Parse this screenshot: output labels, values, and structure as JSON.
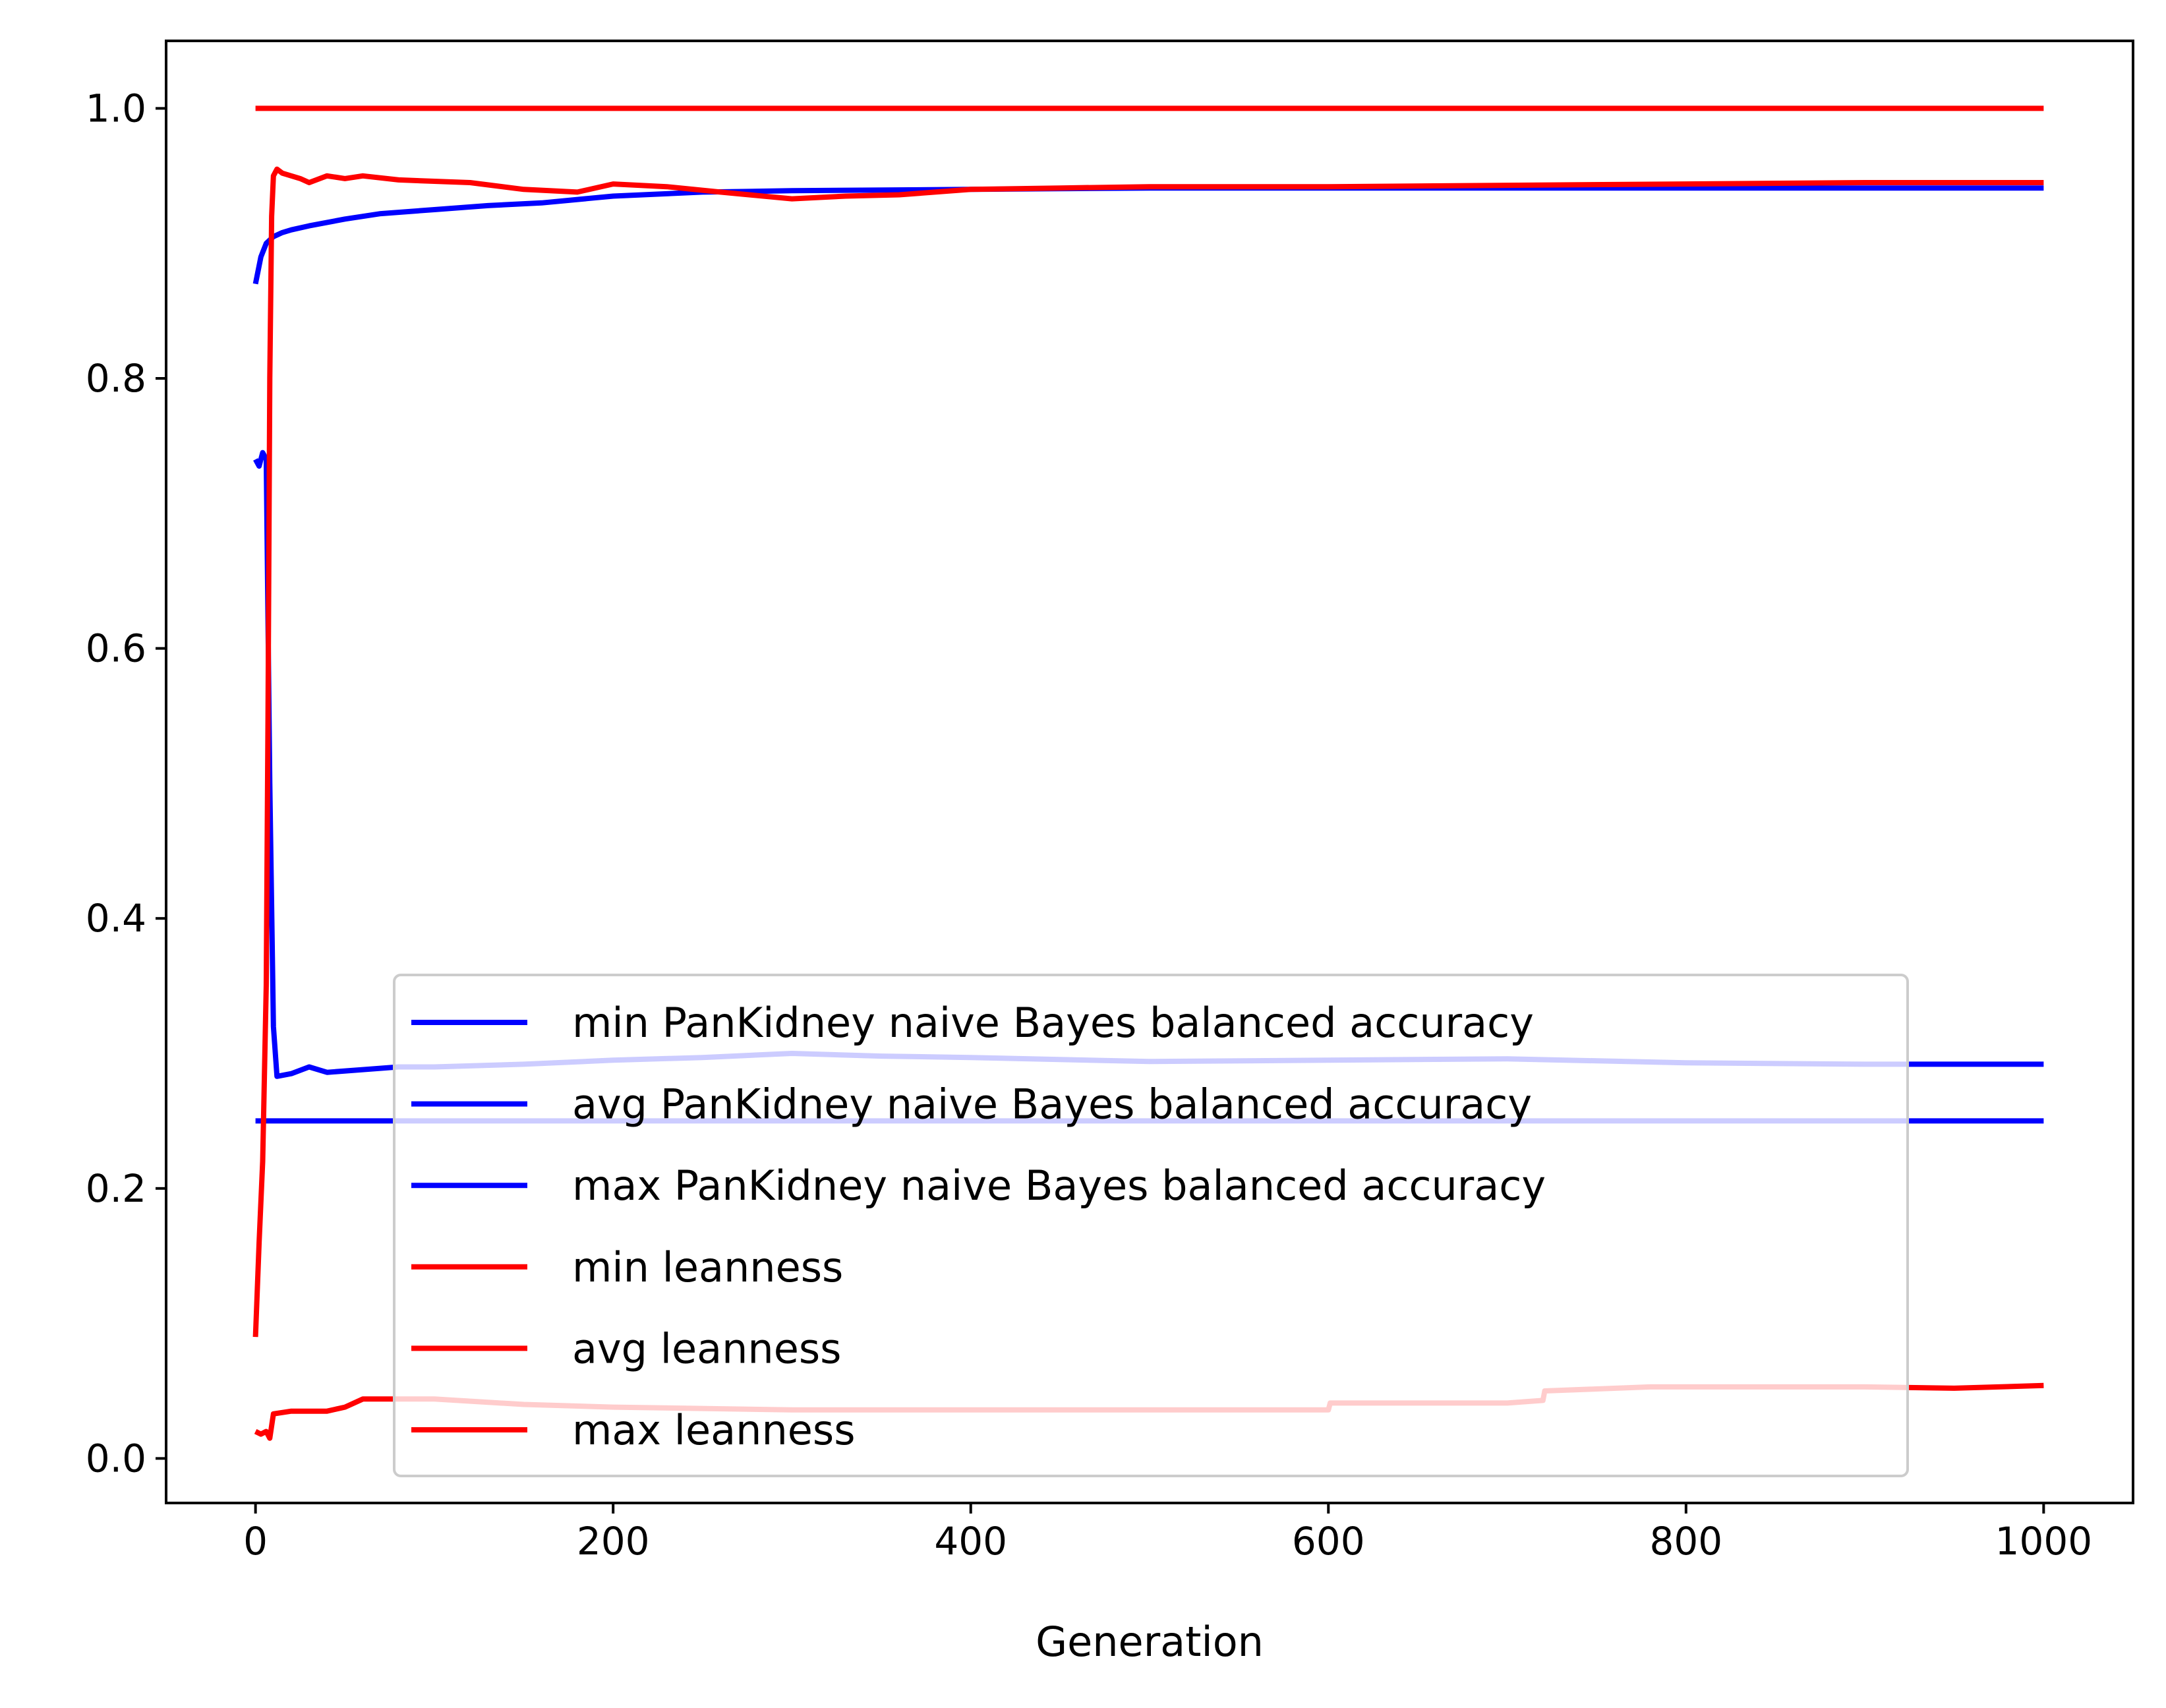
{
  "chart_data": {
    "type": "line",
    "xlabel": "Generation",
    "ylabel": "",
    "xlim": [
      -50,
      1050
    ],
    "ylim": [
      -0.033,
      1.05
    ],
    "xticks": [
      0,
      200,
      400,
      600,
      800,
      1000
    ],
    "xtick_labels": [
      "0",
      "200",
      "400",
      "600",
      "800",
      "1000"
    ],
    "yticks": [
      0.0,
      0.2,
      0.4,
      0.6,
      0.8,
      1.0
    ],
    "ytick_labels": [
      "0.0",
      "0.2",
      "0.4",
      "0.6",
      "0.8",
      "1.0"
    ],
    "grid": false,
    "legend_position": "lower-right",
    "series": [
      {
        "name": "min PanKidney naive Bayes balanced accuracy",
        "color": "#0000ff",
        "x": [
          0,
          2,
          4,
          6,
          8,
          10,
          12,
          20,
          30,
          40,
          60,
          80,
          100,
          150,
          200,
          250,
          300,
          350,
          400,
          500,
          600,
          700,
          800,
          900,
          1000
        ],
        "y": [
          0.74,
          0.735,
          0.745,
          0.74,
          0.5,
          0.32,
          0.283,
          0.285,
          0.29,
          0.286,
          0.288,
          0.29,
          0.29,
          0.292,
          0.295,
          0.297,
          0.3,
          0.298,
          0.297,
          0.294,
          0.295,
          0.296,
          0.293,
          0.292,
          0.292
        ]
      },
      {
        "name": "avg PanKidney naive Bayes balanced accuracy",
        "color": "#0000ff",
        "x": [
          0,
          1000
        ],
        "y": [
          0.25,
          0.25
        ]
      },
      {
        "name": "max PanKidney naive Bayes balanced accuracy",
        "color": "#0000ff",
        "x": [
          0,
          3,
          6,
          10,
          15,
          20,
          30,
          50,
          70,
          100,
          130,
          160,
          200,
          250,
          300,
          400,
          500,
          600,
          700,
          800,
          900,
          1000
        ],
        "y": [
          0.87,
          0.89,
          0.9,
          0.905,
          0.908,
          0.91,
          0.913,
          0.918,
          0.922,
          0.925,
          0.928,
          0.93,
          0.935,
          0.938,
          0.939,
          0.94,
          0.941,
          0.941,
          0.941,
          0.941,
          0.941,
          0.941
        ]
      },
      {
        "name": "min leanness",
        "color": "#ff0000",
        "x": [
          0,
          3,
          6,
          8,
          10,
          20,
          40,
          50,
          60,
          100,
          150,
          200,
          300,
          400,
          500,
          600,
          601,
          700,
          720,
          721,
          780,
          900,
          950,
          1000
        ],
        "y": [
          0.02,
          0.018,
          0.02,
          0.015,
          0.033,
          0.035,
          0.035,
          0.038,
          0.044,
          0.044,
          0.04,
          0.038,
          0.036,
          0.036,
          0.036,
          0.036,
          0.041,
          0.041,
          0.043,
          0.05,
          0.053,
          0.053,
          0.052,
          0.054
        ]
      },
      {
        "name": "avg leanness",
        "color": "#ff0000",
        "x": [
          0,
          2,
          4,
          6,
          7,
          8,
          9,
          10,
          12,
          15,
          20,
          25,
          30,
          40,
          50,
          60,
          80,
          100,
          120,
          150,
          180,
          200,
          230,
          260,
          300,
          330,
          360,
          400,
          450,
          500,
          600,
          700,
          800,
          900,
          1000
        ],
        "y": [
          0.09,
          0.16,
          0.22,
          0.35,
          0.55,
          0.8,
          0.92,
          0.95,
          0.955,
          0.952,
          0.95,
          0.948,
          0.945,
          0.95,
          0.948,
          0.95,
          0.947,
          0.946,
          0.945,
          0.94,
          0.938,
          0.944,
          0.942,
          0.938,
          0.933,
          0.935,
          0.936,
          0.94,
          0.941,
          0.942,
          0.942,
          0.943,
          0.944,
          0.945,
          0.945
        ]
      },
      {
        "name": "max leanness",
        "color": "#ff0000",
        "x": [
          0,
          1000
        ],
        "y": [
          1.0,
          1.0
        ]
      }
    ]
  }
}
